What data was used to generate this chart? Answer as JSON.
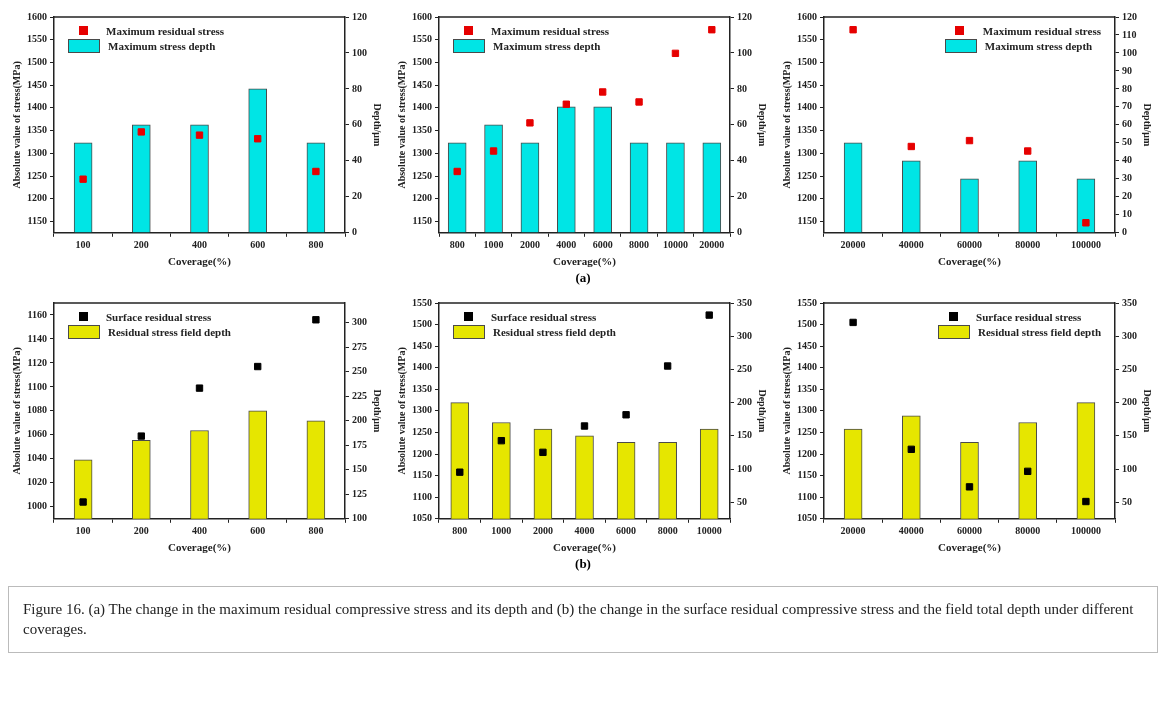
{
  "chart_data": [
    {
      "type": "bar",
      "categories": [
        "100",
        "200",
        "400",
        "600",
        "800"
      ],
      "xlabel": "Coverage(%)",
      "ylabel": "Absolute value of stress(MPa)",
      "y2label": "Depth/μm",
      "legend": "top left",
      "grid": false,
      "series": [
        {
          "name": "Maximum residual stress",
          "type": "scatter",
          "marker": "square",
          "color": "#e60000",
          "values": [
            1243,
            1347,
            1340,
            1332,
            1260
          ]
        },
        {
          "name": "Maximum stress depth",
          "color": "#00e5e5",
          "axis": "y2",
          "values": [
            50,
            60,
            60,
            80,
            50
          ]
        }
      ],
      "ylim": [
        1125,
        1600
      ],
      "yticks": [
        1150,
        1200,
        1250,
        1300,
        1350,
        1400,
        1450,
        1500,
        1550,
        1600
      ],
      "y2lim": [
        0,
        120
      ],
      "y2ticks": [
        0,
        20,
        40,
        60,
        80,
        100,
        120
      ]
    },
    {
      "type": "bar",
      "categories": [
        "800",
        "1000",
        "2000",
        "4000",
        "6000",
        "8000",
        "10000",
        "20000"
      ],
      "xlabel": "Coverage(%)",
      "ylabel": "Absolute value of stress(MPa)",
      "y2label": "Depth/μm",
      "legend": "top left",
      "grid": false,
      "series": [
        {
          "name": "Maximum residual stress",
          "type": "scatter",
          "marker": "square",
          "color": "#e60000",
          "values": [
            1260,
            1305,
            1367,
            1408,
            1435,
            1413,
            1520,
            1572
          ]
        },
        {
          "name": "Maximum stress depth",
          "color": "#00e5e5",
          "axis": "y2",
          "values": [
            50,
            60,
            50,
            70,
            70,
            50,
            50,
            50
          ]
        }
      ],
      "ylim": [
        1125,
        1600
      ],
      "yticks": [
        1150,
        1200,
        1250,
        1300,
        1350,
        1400,
        1450,
        1500,
        1550,
        1600
      ],
      "y2lim": [
        0,
        120
      ],
      "y2ticks": [
        0,
        20,
        40,
        60,
        80,
        100,
        120
      ],
      "annotations": [
        "(a)"
      ]
    },
    {
      "type": "bar",
      "categories": [
        "20000",
        "40000",
        "60000",
        "80000",
        "100000"
      ],
      "xlabel": "Coverage(%)",
      "ylabel": "Absolute value of stress(MPa)",
      "y2label": "Depth/μm",
      "legend": "top right",
      "grid": false,
      "series": [
        {
          "name": "Maximum residual stress",
          "type": "scatter",
          "marker": "square",
          "color": "#e60000",
          "values": [
            1572,
            1315,
            1328,
            1305,
            1147
          ]
        },
        {
          "name": "Maximum stress depth",
          "color": "#00e5e5",
          "axis": "y2",
          "values": [
            50,
            40,
            30,
            40,
            30
          ]
        }
      ],
      "ylim": [
        1125,
        1600
      ],
      "yticks": [
        1150,
        1200,
        1250,
        1300,
        1350,
        1400,
        1450,
        1500,
        1550,
        1600
      ],
      "y2lim": [
        0,
        120
      ],
      "y2ticks": [
        0,
        10,
        20,
        30,
        40,
        50,
        60,
        70,
        80,
        90,
        100,
        110,
        120
      ]
    },
    {
      "type": "bar",
      "categories": [
        "100",
        "200",
        "400",
        "600",
        "800"
      ],
      "xlabel": "Coverage(%)",
      "ylabel": "Absolute value of stress(MPa)",
      "y2label": "Depth/μm",
      "legend": "top left",
      "grid": false,
      "series": [
        {
          "name": "Surface residual stress",
          "type": "scatter",
          "marker": "square",
          "color": "#000000",
          "values": [
            1004,
            1059,
            1099,
            1117,
            1156
          ]
        },
        {
          "name": "Residual stress field depth",
          "color": "#e6e600",
          "axis": "y2",
          "values": [
            160,
            180,
            190,
            210,
            200
          ]
        }
      ],
      "ylim": [
        990,
        1170
      ],
      "yticks": [
        1000,
        1020,
        1040,
        1060,
        1080,
        1100,
        1120,
        1140,
        1160
      ],
      "y2lim": [
        100,
        320
      ],
      "y2ticks": [
        100,
        125,
        150,
        175,
        200,
        225,
        250,
        275,
        300
      ]
    },
    {
      "type": "bar",
      "categories": [
        "800",
        "1000",
        "2000",
        "4000",
        "6000",
        "8000",
        "10000"
      ],
      "xlabel": "Coverage(%)",
      "ylabel": "Absolute value of stress(MPa)",
      "y2label": "Depth/μm",
      "legend": "top left",
      "grid": false,
      "series": [
        {
          "name": "Surface residual stress",
          "type": "scatter",
          "marker": "square",
          "color": "#000000",
          "values": [
            1158,
            1231,
            1204,
            1265,
            1291,
            1404,
            1522
          ]
        },
        {
          "name": "Residual stress field depth",
          "color": "#e6e600",
          "axis": "y2",
          "values": [
            200,
            170,
            160,
            150,
            140,
            140,
            160
          ]
        }
      ],
      "ylim": [
        1050,
        1550
      ],
      "yticks": [
        1050,
        1100,
        1150,
        1200,
        1250,
        1300,
        1350,
        1400,
        1450,
        1500,
        1550
      ],
      "y2lim": [
        25,
        350
      ],
      "y2ticks": [
        50,
        100,
        150,
        200,
        250,
        300,
        350
      ],
      "annotations": [
        "(b)",
        "Figure 16. (a) The change in the maximum residual compressive stress and its depth and (b) the change in the surface residual compressive stress and the field total depth under different coverages."
      ]
    },
    {
      "type": "bar",
      "categories": [
        "20000",
        "40000",
        "60000",
        "80000",
        "100000"
      ],
      "xlabel": "Coverage(%)",
      "ylabel": "Absolute value of stress(MPa)",
      "y2label": "Depth/μm",
      "legend": "top right",
      "grid": false,
      "series": [
        {
          "name": "Surface residual stress",
          "type": "scatter",
          "marker": "square",
          "color": "#000000",
          "values": [
            1505,
            1211,
            1124,
            1160,
            1090
          ]
        },
        {
          "name": "Residual stress field depth",
          "color": "#e6e600",
          "axis": "y2",
          "values": [
            160,
            180,
            140,
            170,
            200
          ]
        }
      ],
      "ylim": [
        1050,
        1550
      ],
      "yticks": [
        1050,
        1100,
        1150,
        1200,
        1250,
        1300,
        1350,
        1400,
        1450,
        1500,
        1550
      ],
      "y2lim": [
        25,
        350
      ],
      "y2ticks": [
        50,
        100,
        150,
        200,
        250,
        300,
        350
      ]
    }
  ]
}
